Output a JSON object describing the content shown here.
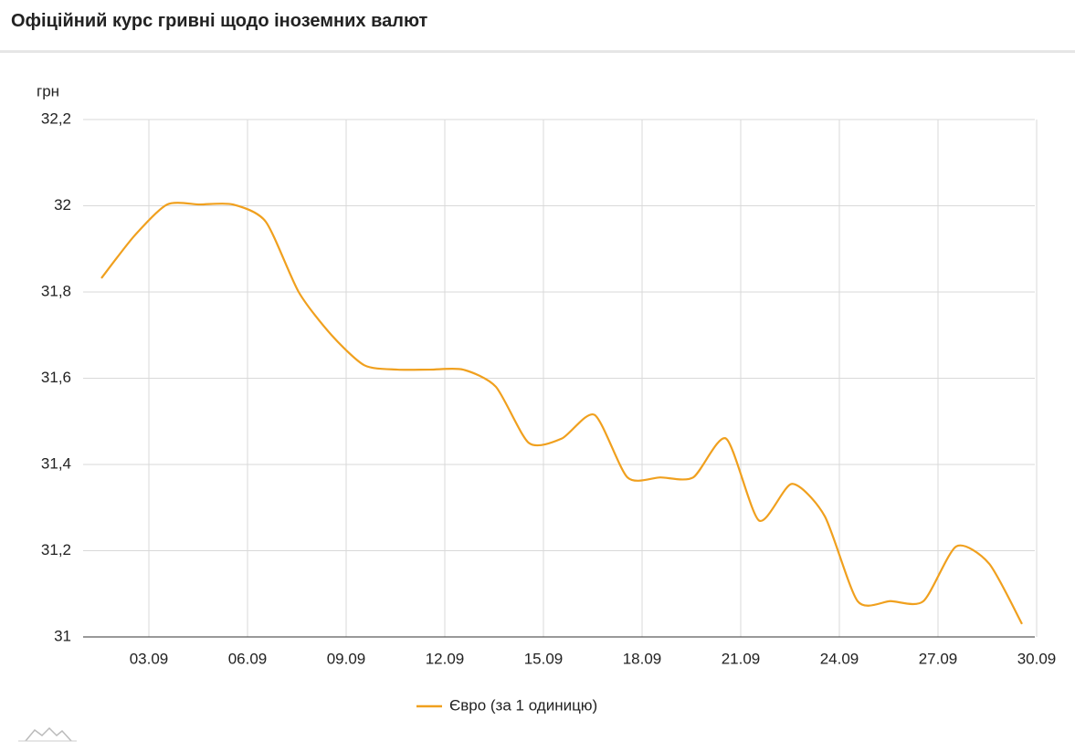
{
  "chart_data": {
    "type": "line",
    "title": "Офіційний курс гривні щодо іноземних валют",
    "y_label": "грн",
    "x": [
      "01.09",
      "02.09",
      "03.09",
      "04.09",
      "05.09",
      "06.09",
      "07.09",
      "08.09",
      "09.09",
      "10.09",
      "11.09",
      "12.09",
      "13.09",
      "14.09",
      "15.09",
      "16.09",
      "17.09",
      "18.09",
      "19.09",
      "20.09",
      "21.09",
      "22.09",
      "23.09",
      "24.09",
      "25.09",
      "26.09",
      "27.09",
      "28.09",
      "29.09"
    ],
    "series": [
      {
        "name": "Євро (за 1 одиницю)",
        "color": "#f0a01e",
        "values": [
          31.832,
          31.93,
          32.003,
          32.003,
          32.003,
          31.963,
          31.8,
          31.7,
          31.63,
          31.62,
          31.62,
          31.62,
          31.58,
          31.45,
          31.46,
          31.515,
          31.37,
          31.37,
          31.37,
          31.46,
          31.27,
          31.355,
          31.28,
          31.083,
          31.083,
          31.083,
          31.21,
          31.17,
          31.03
        ]
      }
    ],
    "xticks": [
      "03.09",
      "06.09",
      "09.09",
      "12.09",
      "15.09",
      "18.09",
      "21.09",
      "24.09",
      "27.09",
      "30.09"
    ],
    "ylim": [
      31,
      32.2
    ],
    "yticks": [
      31,
      {
        "value": 31.2,
        "label": "31,2"
      },
      {
        "value": 31.4,
        "label": "31,4"
      },
      {
        "value": 31.6,
        "label": "31,6"
      },
      {
        "value": 31.8,
        "label": "31,8"
      },
      32,
      {
        "value": 32.2,
        "label": "32,2"
      }
    ],
    "grid": true
  }
}
